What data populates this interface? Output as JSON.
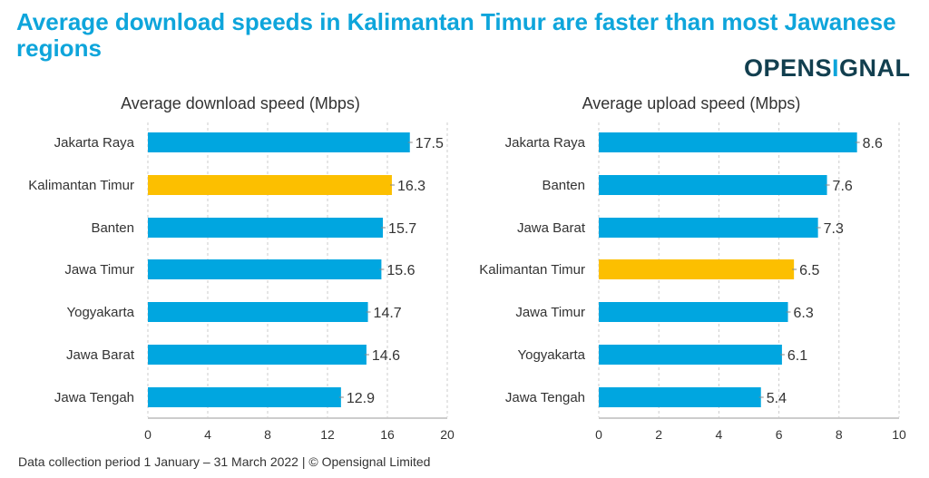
{
  "title": "Average download speeds in Kalimantan Timur are faster than most Jawanese regions",
  "logo": "OPENSIGNAL",
  "footer": "Data collection period 1 January – 31 March 2022  |  © Opensignal Limited",
  "colors": {
    "default": "#00a6e0",
    "highlight": "#fcbf00",
    "title": "#0ea5db"
  },
  "chart_data": [
    {
      "type": "bar",
      "orientation": "horizontal",
      "title": "Average download speed (Mbps)",
      "categories": [
        "Jakarta Raya",
        "Kalimantan Timur",
        "Banten",
        "Jawa Timur",
        "Yogyakarta",
        "Jawa Barat",
        "Jawa Tengah"
      ],
      "values": [
        17.5,
        16.3,
        15.7,
        15.6,
        14.7,
        14.6,
        12.9
      ],
      "highlight": "Kalimantan Timur",
      "xlim": [
        0,
        20
      ],
      "ticks": [
        0,
        4,
        8,
        12,
        16,
        20
      ],
      "grid": true
    },
    {
      "type": "bar",
      "orientation": "horizontal",
      "title": "Average upload speed   (Mbps)",
      "categories": [
        "Jakarta Raya",
        "Banten",
        "Jawa Barat",
        "Kalimantan Timur",
        "Jawa Timur",
        "Yogyakarta",
        "Jawa Tengah"
      ],
      "values": [
        8.6,
        7.6,
        7.3,
        6.5,
        6.3,
        6.1,
        5.4
      ],
      "highlight": "Kalimantan Timur",
      "xlim": [
        0,
        10
      ],
      "ticks": [
        0,
        2,
        4,
        6,
        8,
        10
      ],
      "grid": true
    }
  ]
}
